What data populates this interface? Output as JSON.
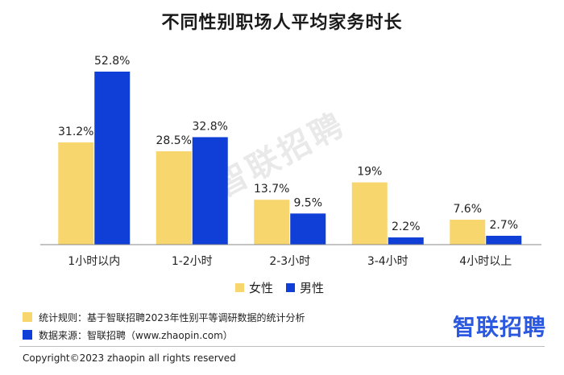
{
  "title": "不同性别职场人平均家务时长",
  "watermark": "智联招聘",
  "colors": {
    "female": "#f8d66e",
    "male": "#0f3fd6",
    "brand": "#2b58e0",
    "axis": "#888888"
  },
  "chart_data": {
    "type": "bar",
    "categories": [
      "1小时以内",
      "1-2小时",
      "2-3小时",
      "3-4小时",
      "4小时以上"
    ],
    "series": [
      {
        "name": "女性",
        "values": [
          31.2,
          28.5,
          13.7,
          19,
          7.6
        ],
        "labels": [
          "31.2%",
          "28.5%",
          "13.7%",
          "19%",
          "7.6%"
        ]
      },
      {
        "name": "男性",
        "values": [
          52.8,
          32.8,
          9.5,
          2.2,
          2.7
        ],
        "labels": [
          "52.8%",
          "32.8%",
          "9.5%",
          "2.2%",
          "2.7%"
        ]
      }
    ],
    "ylim": [
      0,
      52.8
    ],
    "grid": false,
    "legend": "bottom"
  },
  "notes": [
    {
      "text": "统计规则：基于智联招聘2023年性别平等调研数据的统计分析"
    },
    {
      "text": "数据来源：智联招聘（www.zhaopin.com）"
    }
  ],
  "brand": "智联招聘",
  "copyright": "Copyright©2023 zhaopin all rights reserved"
}
